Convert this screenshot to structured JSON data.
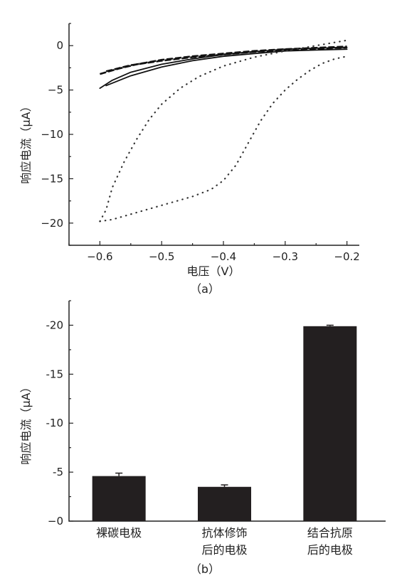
{
  "chart_data": [
    {
      "type": "line",
      "caption": "（a）",
      "xlabel": "电压（V）",
      "ylabel": "响应电流（μA）",
      "xlim": [
        -0.65,
        -0.18
      ],
      "ylim": [
        -22.5,
        2.5
      ],
      "x_ticks": [
        -0.6,
        -0.5,
        -0.4,
        -0.3,
        -0.2
      ],
      "x_tick_labels": [
        "−0.6",
        "−0.5",
        "−0.4",
        "−0.3",
        "−0.2"
      ],
      "y_ticks": [
        0,
        -5,
        -10,
        -15,
        -20
      ],
      "y_tick_labels": [
        "0",
        "−5",
        "−10",
        "−15",
        "−20"
      ],
      "series": [
        {
          "style": "solid",
          "color": "#111111",
          "points": [
            [
              -0.6,
              -4.8
            ],
            [
              -0.58,
              -3.9
            ],
            [
              -0.55,
              -3.0
            ],
            [
              -0.5,
              -2.1
            ],
            [
              -0.45,
              -1.5
            ],
            [
              -0.4,
              -1.0
            ],
            [
              -0.35,
              -0.7
            ],
            [
              -0.3,
              -0.4
            ],
            [
              -0.25,
              -0.3
            ],
            [
              -0.2,
              -0.2
            ]
          ]
        },
        {
          "style": "solid",
          "color": "#111111",
          "points": [
            [
              -0.59,
              -4.5
            ],
            [
              -0.55,
              -3.4
            ],
            [
              -0.5,
              -2.4
            ],
            [
              -0.45,
              -1.7
            ],
            [
              -0.4,
              -1.2
            ],
            [
              -0.35,
              -0.9
            ],
            [
              -0.3,
              -0.6
            ],
            [
              -0.25,
              -0.5
            ],
            [
              -0.2,
              -0.4
            ]
          ]
        },
        {
          "style": "dashed",
          "color": "#111111",
          "points": [
            [
              -0.6,
              -3.2
            ],
            [
              -0.57,
              -2.6
            ],
            [
              -0.54,
              -2.1
            ],
            [
              -0.5,
              -1.6
            ],
            [
              -0.45,
              -1.2
            ],
            [
              -0.4,
              -0.9
            ],
            [
              -0.35,
              -0.6
            ],
            [
              -0.3,
              -0.4
            ],
            [
              -0.25,
              -0.25
            ],
            [
              -0.2,
              -0.1
            ]
          ]
        },
        {
          "style": "dashed",
          "color": "#111111",
          "points": [
            [
              -0.59,
              -2.9
            ],
            [
              -0.55,
              -2.2
            ],
            [
              -0.5,
              -1.7
            ],
            [
              -0.45,
              -1.3
            ],
            [
              -0.4,
              -1.0
            ],
            [
              -0.35,
              -0.7
            ],
            [
              -0.3,
              -0.5
            ],
            [
              -0.25,
              -0.35
            ],
            [
              -0.2,
              -0.2
            ]
          ]
        },
        {
          "style": "dotted",
          "color": "#333333",
          "points": [
            [
              -0.6,
              -19.8
            ],
            [
              -0.58,
              -19.6
            ],
            [
              -0.55,
              -19.0
            ],
            [
              -0.5,
              -18.0
            ],
            [
              -0.45,
              -17.0
            ],
            [
              -0.42,
              -16.2
            ],
            [
              -0.4,
              -15.2
            ],
            [
              -0.38,
              -13.5
            ],
            [
              -0.36,
              -11.0
            ],
            [
              -0.34,
              -8.5
            ],
            [
              -0.32,
              -6.5
            ],
            [
              -0.3,
              -5.0
            ],
            [
              -0.28,
              -3.8
            ],
            [
              -0.26,
              -2.8
            ],
            [
              -0.24,
              -2.0
            ],
            [
              -0.22,
              -1.5
            ],
            [
              -0.2,
              -1.2
            ]
          ]
        },
        {
          "style": "dotted",
          "color": "#333333",
          "points": [
            [
              -0.6,
              -19.8
            ],
            [
              -0.59,
              -18.5
            ],
            [
              -0.58,
              -16.0
            ],
            [
              -0.56,
              -13.0
            ],
            [
              -0.54,
              -10.5
            ],
            [
              -0.52,
              -8.3
            ],
            [
              -0.5,
              -6.6
            ],
            [
              -0.47,
              -4.8
            ],
            [
              -0.44,
              -3.5
            ],
            [
              -0.4,
              -2.3
            ],
            [
              -0.35,
              -1.3
            ],
            [
              -0.3,
              -0.6
            ],
            [
              -0.25,
              0.0
            ],
            [
              -0.2,
              0.6
            ]
          ]
        }
      ]
    },
    {
      "type": "bar",
      "caption": "（b）",
      "ylabel": "响应电流（μA）",
      "ylim": [
        0,
        -22.5
      ],
      "y_ticks": [
        0,
        -5,
        -10,
        -15,
        -20
      ],
      "y_tick_labels": [
        "−0",
        "-5",
        "-10",
        "-15",
        "-20"
      ],
      "categories": [
        [
          "裸碳电极"
        ],
        [
          "抗体修饰",
          "后的电极"
        ],
        [
          "结合抗原",
          "后的电极"
        ]
      ],
      "values": [
        -4.6,
        -3.5,
        -19.9
      ],
      "errors": [
        0.3,
        0.2,
        0.1
      ],
      "bar_color": "#231f20"
    }
  ]
}
